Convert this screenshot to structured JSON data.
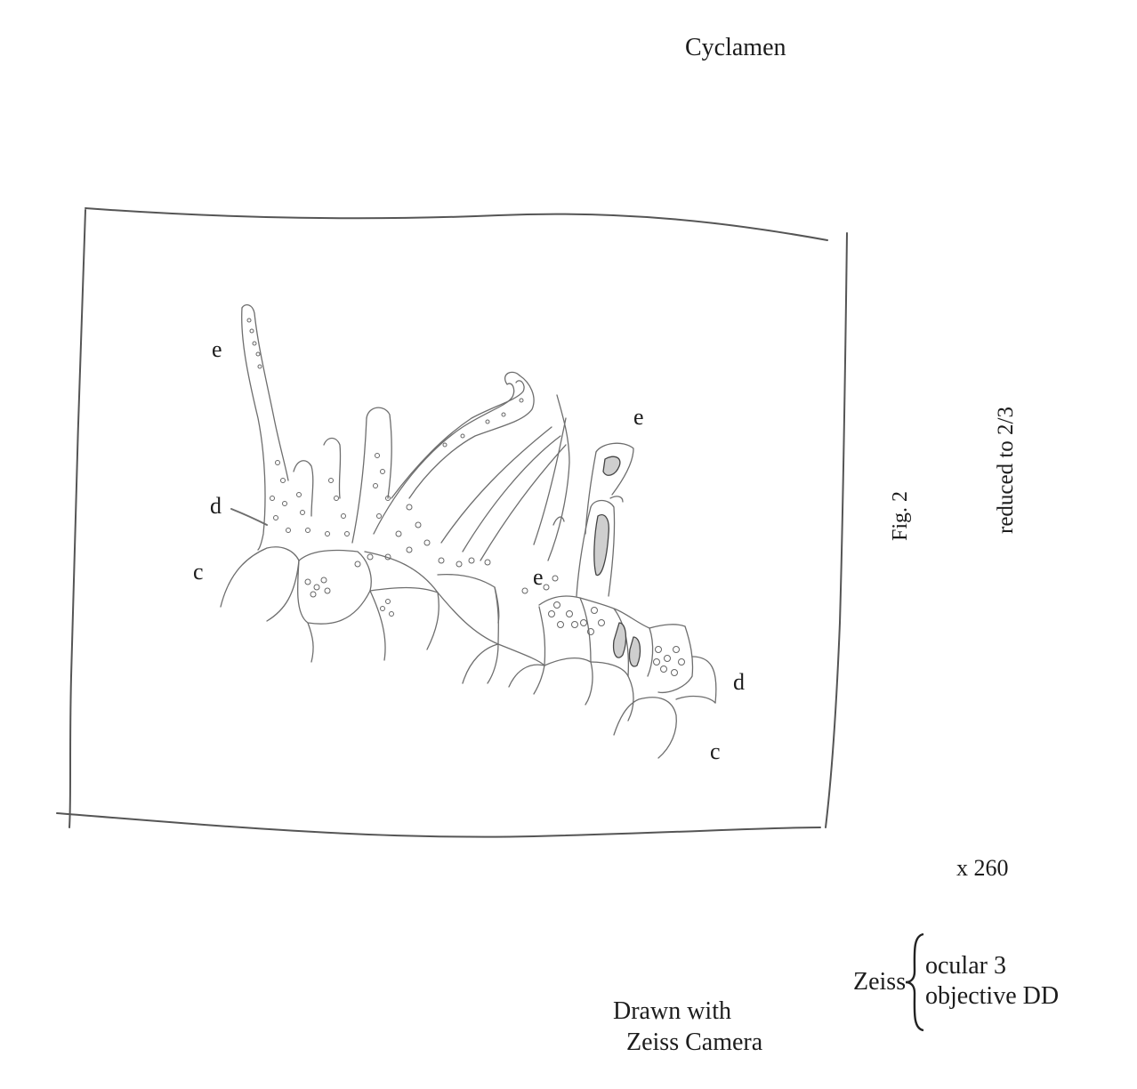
{
  "title": "Cyclamen",
  "figure_label": "Fig. 2",
  "reduction_note": "reduced to 2/3",
  "magnification": "x 260",
  "optics": {
    "brand": "Zeiss",
    "ocular": "ocular 3",
    "objective": "objective DD"
  },
  "credit": {
    "line1": "Drawn with",
    "line2": "Zeiss Camera"
  },
  "labels": {
    "e_top": "e",
    "e_right": "e",
    "e_mid": "e",
    "d_left": "d",
    "d_right": "d",
    "c_left": "c",
    "c_right": "c"
  }
}
